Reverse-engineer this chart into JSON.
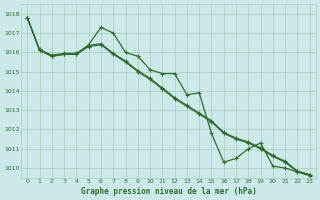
{
  "title": "Graphe pression niveau de la mer (hPa)",
  "bg_color": "#cce8e8",
  "grid_color": "#aaccbb",
  "line_color": "#2d6e2d",
  "x_labels": [
    "0",
    "1",
    "2",
    "3",
    "4",
    "5",
    "6",
    "7",
    "8",
    "9",
    "10",
    "11",
    "12",
    "13",
    "14",
    "15",
    "16",
    "17",
    "18",
    "19",
    "20",
    "21",
    "22",
    "23"
  ],
  "ylim": [
    1009.5,
    1018.5
  ],
  "yticks": [
    1010,
    1011,
    1012,
    1013,
    1014,
    1015,
    1016,
    1017,
    1018
  ],
  "series_jagged": [
    1017.8,
    1016.1,
    1015.8,
    1015.9,
    1015.9,
    1016.4,
    1017.3,
    1017.0,
    1016.0,
    1015.8,
    1015.1,
    1014.9,
    1014.9,
    1013.8,
    1013.9,
    1011.8,
    1010.3,
    1010.5,
    1011.0,
    1011.3,
    1010.1,
    1010.0,
    1009.8,
    1009.65
  ],
  "series_smooth1": [
    1017.8,
    1016.1,
    1015.8,
    1015.9,
    1015.9,
    1016.3,
    1016.4,
    1015.9,
    1015.5,
    1015.0,
    1014.6,
    1014.1,
    1013.6,
    1013.2,
    1012.8,
    1012.4,
    1011.8,
    1011.5,
    1011.3,
    1011.0,
    1010.6,
    1010.3,
    1009.8,
    1009.6
  ],
  "series_smooth2": [
    1017.8,
    1016.15,
    1015.85,
    1015.95,
    1015.95,
    1016.35,
    1016.45,
    1015.95,
    1015.55,
    1015.05,
    1014.65,
    1014.15,
    1013.65,
    1013.25,
    1012.85,
    1012.45,
    1011.85,
    1011.55,
    1011.35,
    1011.05,
    1010.65,
    1010.35,
    1009.85,
    1009.65
  ]
}
